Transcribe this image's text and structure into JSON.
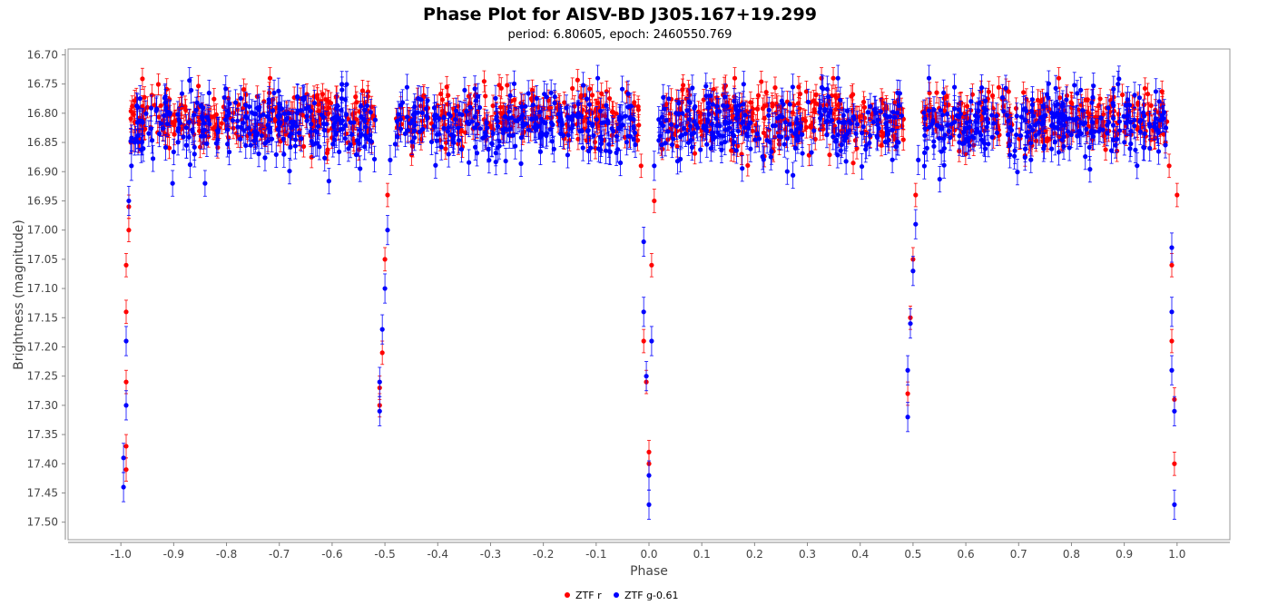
{
  "chart_data": {
    "type": "scatter",
    "title": "Phase Plot for AISV-BD J305.167+19.299",
    "subtitle": "period: 6.80605, epoch: 2460550.769",
    "xlabel": "Phase",
    "ylabel": "Brightness (magnitude)",
    "xlim": [
      -1.1,
      1.1
    ],
    "ylim": [
      16.69,
      17.53
    ],
    "y_inverted": true,
    "x_ticks": [
      -1.0,
      -0.9,
      -0.8,
      -0.7,
      -0.6,
      -0.5,
      -0.4,
      -0.3,
      -0.2,
      -0.1,
      0.0,
      0.1,
      0.2,
      0.3,
      0.4,
      0.5,
      0.6,
      0.7,
      0.8,
      0.9,
      1.0
    ],
    "x_tick_labels": [
      "-1.0",
      "-0.9",
      "-0.8",
      "-0.7",
      "-0.6",
      "-0.5",
      "-0.4",
      "-0.3",
      "-0.2",
      "-0.1",
      "0.0",
      "0.1",
      "0.2",
      "0.3",
      "0.4",
      "0.5",
      "0.6",
      "0.7",
      "0.8",
      "0.9",
      "1.0"
    ],
    "y_ticks": [
      16.7,
      16.75,
      16.8,
      16.85,
      16.9,
      16.95,
      17.0,
      17.05,
      17.1,
      17.15,
      17.2,
      17.25,
      17.3,
      17.35,
      17.4,
      17.45,
      17.5
    ],
    "y_tick_labels": [
      "16.70",
      "16.75",
      "16.80",
      "16.85",
      "16.90",
      "16.95",
      "17.00",
      "17.05",
      "17.10",
      "17.15",
      "17.20",
      "17.25",
      "17.30",
      "17.35",
      "17.40",
      "17.45",
      "17.50"
    ],
    "grid": false,
    "legend_position": "bottom-center",
    "series": [
      {
        "name": "ZTF r",
        "color": "#ff0000",
        "baseline_mag": 16.81,
        "scatter": 0.025,
        "error": 0.018,
        "primary_eclipse_depth_mag": 17.43,
        "secondary_eclipse_depth_mag": 17.3,
        "points": [
          [
            -0.99,
            17.41,
            0.02
          ],
          [
            -0.99,
            17.37,
            0.02
          ],
          [
            -0.99,
            17.26,
            0.02
          ],
          [
            -0.99,
            17.14,
            0.02
          ],
          [
            -0.99,
            17.06,
            0.02
          ],
          [
            -0.985,
            16.96,
            0.02
          ],
          [
            -0.985,
            17.0,
            0.02
          ],
          [
            -0.51,
            17.27,
            0.02
          ],
          [
            -0.505,
            17.21,
            0.02
          ],
          [
            -0.5,
            17.05,
            0.02
          ],
          [
            -0.495,
            16.94,
            0.02
          ],
          [
            -0.51,
            17.3,
            0.02
          ],
          [
            -0.005,
            17.26,
            0.02
          ],
          [
            0.0,
            17.38,
            0.02
          ],
          [
            0.0,
            17.4,
            0.02
          ],
          [
            0.005,
            17.06,
            0.02
          ],
          [
            0.01,
            16.95,
            0.02
          ],
          [
            -0.01,
            17.19,
            0.02
          ],
          [
            -0.015,
            16.89,
            0.02
          ],
          [
            0.49,
            17.28,
            0.02
          ],
          [
            0.495,
            17.15,
            0.02
          ],
          [
            0.5,
            17.05,
            0.02
          ],
          [
            0.505,
            16.94,
            0.02
          ],
          [
            0.99,
            17.19,
            0.02
          ],
          [
            0.995,
            17.29,
            0.02
          ],
          [
            0.995,
            17.4,
            0.02
          ],
          [
            0.99,
            17.06,
            0.02
          ],
          [
            1.0,
            16.94,
            0.02
          ],
          [
            0.985,
            16.89,
            0.02
          ]
        ]
      },
      {
        "name": "ZTF g-0.61",
        "color": "#0000ff",
        "baseline_mag": 16.82,
        "scatter": 0.03,
        "error": 0.022,
        "primary_eclipse_depth_mag": 17.47,
        "secondary_eclipse_depth_mag": 17.32,
        "points": [
          [
            -0.995,
            17.44,
            0.025
          ],
          [
            -0.995,
            17.39,
            0.025
          ],
          [
            -0.99,
            17.3,
            0.025
          ],
          [
            -0.99,
            17.19,
            0.025
          ],
          [
            -0.985,
            16.95,
            0.025
          ],
          [
            -0.98,
            16.89,
            0.025
          ],
          [
            -0.51,
            17.31,
            0.025
          ],
          [
            -0.51,
            17.26,
            0.025
          ],
          [
            -0.505,
            17.17,
            0.025
          ],
          [
            -0.5,
            17.1,
            0.025
          ],
          [
            -0.495,
            17.0,
            0.025
          ],
          [
            -0.49,
            16.88,
            0.025
          ],
          [
            0.0,
            17.47,
            0.025
          ],
          [
            0.0,
            17.42,
            0.025
          ],
          [
            -0.005,
            17.25,
            0.025
          ],
          [
            -0.01,
            17.14,
            0.025
          ],
          [
            -0.01,
            17.02,
            0.025
          ],
          [
            0.005,
            17.19,
            0.025
          ],
          [
            0.01,
            16.89,
            0.025
          ],
          [
            0.49,
            17.32,
            0.025
          ],
          [
            0.49,
            17.24,
            0.025
          ],
          [
            0.495,
            17.16,
            0.025
          ],
          [
            0.5,
            17.07,
            0.025
          ],
          [
            0.505,
            16.99,
            0.025
          ],
          [
            0.51,
            16.88,
            0.025
          ],
          [
            0.995,
            17.47,
            0.025
          ],
          [
            0.995,
            17.31,
            0.025
          ],
          [
            0.99,
            17.24,
            0.025
          ],
          [
            0.99,
            17.14,
            0.025
          ],
          [
            0.99,
            17.03,
            0.025
          ]
        ]
      }
    ]
  }
}
